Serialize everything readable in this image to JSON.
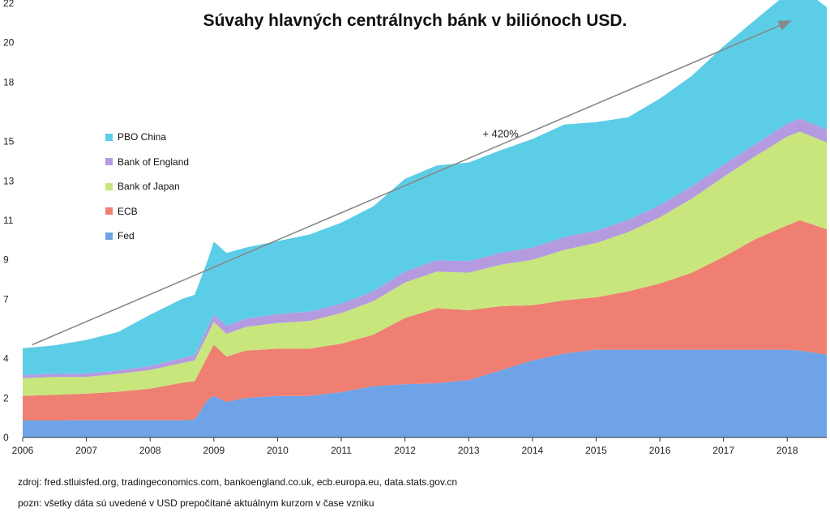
{
  "notes": {
    "source": "zdroj: fred.stluisfed.org, tradingeconomics.com, bankoengland.co.uk, ecb.europa.eu, data.stats.gov.cn",
    "remark": "pozn: všetky dáta sú uvedené v USD prepočítané aktuálnym kurzom v čase vzniku"
  },
  "chart_data": {
    "type": "area",
    "stacked": true,
    "title": "Súvahy hlavných centrálnych bánk v biliónoch USD.",
    "xlabel": "",
    "ylabel": "",
    "ylim": [
      0,
      22
    ],
    "xlim": [
      2006.0,
      2018.62
    ],
    "y_ticks": [
      "0",
      "2",
      "4",
      "7",
      "9",
      "11",
      "13",
      "15",
      "18",
      "20",
      "22"
    ],
    "x_ticks": [
      "2006",
      "2007",
      "2008",
      "2009",
      "2010",
      "2011",
      "2012",
      "2013",
      "2014",
      "2015",
      "2016",
      "2017",
      "2018"
    ],
    "grid": false,
    "legend_position": "left",
    "x": [
      2006.0,
      2006.5,
      2007.0,
      2007.5,
      2008.0,
      2008.5,
      2008.7,
      2008.9,
      2009.0,
      2009.2,
      2009.5,
      2010.0,
      2010.5,
      2011.0,
      2011.5,
      2012.0,
      2012.5,
      2013.0,
      2013.5,
      2014.0,
      2014.5,
      2015.0,
      2015.5,
      2016.0,
      2016.5,
      2017.0,
      2017.5,
      2018.0,
      2018.2,
      2018.62
    ],
    "series": [
      {
        "name": "Fed",
        "color": "#6ea3e8",
        "values": [
          0.86,
          0.86,
          0.87,
          0.87,
          0.87,
          0.87,
          0.9,
          1.9,
          2.1,
          1.8,
          2.0,
          2.1,
          2.1,
          2.3,
          2.6,
          2.7,
          2.75,
          2.9,
          3.4,
          3.9,
          4.25,
          4.45,
          4.45,
          4.45,
          4.45,
          4.45,
          4.45,
          4.45,
          4.4,
          4.2
        ]
      },
      {
        "name": "ECB",
        "color": "#ef7f72",
        "values": [
          1.25,
          1.3,
          1.35,
          1.45,
          1.6,
          1.9,
          1.95,
          2.2,
          2.6,
          2.3,
          2.4,
          2.4,
          2.4,
          2.45,
          2.6,
          3.35,
          3.8,
          3.55,
          3.25,
          2.8,
          2.7,
          2.65,
          2.95,
          3.35,
          3.9,
          4.7,
          5.6,
          6.3,
          6.6,
          6.35
        ]
      },
      {
        "name": "Bank of Japan",
        "color": "#c8e67c",
        "values": [
          0.9,
          0.9,
          0.85,
          0.9,
          0.95,
          1.0,
          1.05,
          1.1,
          1.15,
          1.15,
          1.2,
          1.3,
          1.4,
          1.55,
          1.7,
          1.8,
          1.85,
          1.9,
          2.1,
          2.3,
          2.55,
          2.75,
          3.0,
          3.35,
          3.75,
          4.05,
          4.2,
          4.5,
          4.5,
          4.4
        ]
      },
      {
        "name": "Bank of England",
        "color": "#b49be0",
        "values": [
          0.16,
          0.16,
          0.17,
          0.18,
          0.2,
          0.25,
          0.28,
          0.35,
          0.38,
          0.4,
          0.42,
          0.45,
          0.48,
          0.48,
          0.5,
          0.55,
          0.58,
          0.58,
          0.6,
          0.62,
          0.65,
          0.63,
          0.62,
          0.62,
          0.62,
          0.62,
          0.62,
          0.65,
          0.65,
          0.65
        ]
      },
      {
        "name": "PBO China",
        "color": "#5ccde6",
        "values": [
          1.35,
          1.45,
          1.7,
          1.95,
          2.6,
          3.0,
          3.05,
          3.4,
          3.7,
          3.7,
          3.6,
          3.7,
          3.9,
          4.1,
          4.3,
          4.7,
          4.8,
          5.0,
          5.2,
          5.5,
          5.7,
          5.5,
          5.2,
          5.4,
          5.6,
          6.0,
          6.3,
          6.6,
          6.7,
          6.2
        ]
      }
    ],
    "annotations": [
      {
        "text": "+ 420%",
        "x": 2013.5,
        "y": 15.2
      }
    ],
    "trend_arrow": {
      "from": [
        2006.15,
        4.7
      ],
      "to": [
        2018.05,
        21.1
      ]
    }
  }
}
